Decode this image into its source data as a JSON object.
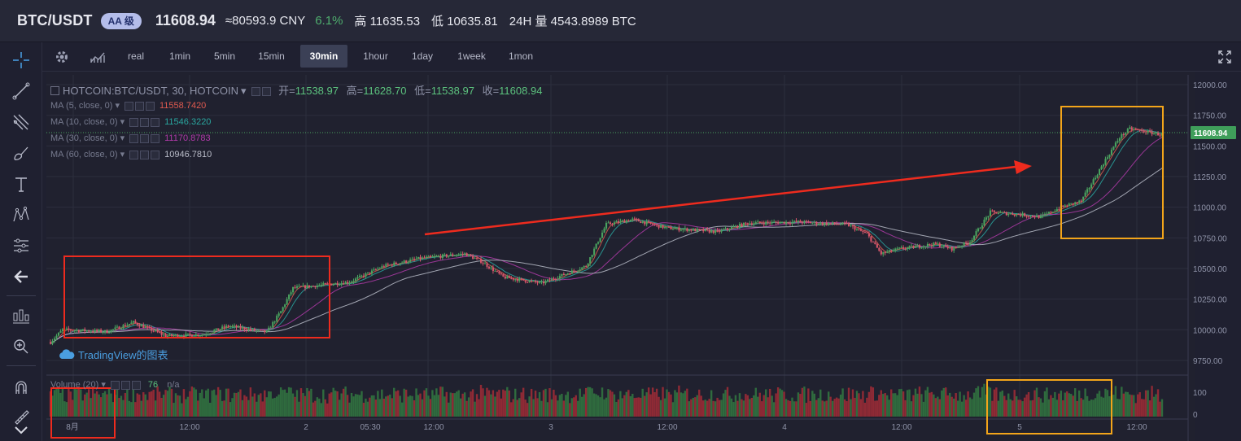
{
  "header": {
    "pair": "BTC/USDT",
    "grade": "AA 级",
    "price": "11608.94",
    "cny": "≈80593.9 CNY",
    "change": "6.1%",
    "high": "高 11635.53",
    "low": "低 10635.81",
    "volume24h": "24H 量 4543.8989 BTC"
  },
  "toolbar": {
    "timeframes": [
      "real",
      "1min",
      "5min",
      "15min",
      "30min",
      "1hour",
      "1day",
      "1week",
      "1mon"
    ],
    "active": "30min",
    "settings_icon": "gear-icon",
    "indicators_icon": "indicator-chart-icon",
    "fullscreen_icon": "fullscreen-icon"
  },
  "sidebar": {
    "tools": [
      "crosshair-icon",
      "trend-line-icon",
      "fib-icon",
      "brush-icon",
      "text-icon",
      "pattern-icon",
      "prediction-icon",
      "back-arrow-icon",
      "ruler-icon",
      "zoom-icon",
      "magnet-icon",
      "measure-icon"
    ]
  },
  "chart": {
    "symbol": "HOTCOIN:BTC/USDT, 30, HOTCOIN",
    "ohlc": {
      "open_label": "开=",
      "open": "11538.97",
      "high_label": "高=",
      "high": "11628.70",
      "low_label": "低=",
      "low": "11538.97",
      "close_label": "收=",
      "close": "11608.94"
    },
    "ma": [
      {
        "label": "MA (5, close, 0)",
        "value": "11558.7420",
        "color": "#e05a4f"
      },
      {
        "label": "MA (10, close, 0)",
        "value": "11546.3220",
        "color": "#2aa7a0"
      },
      {
        "label": "MA (30, close, 0)",
        "value": "11170.8783",
        "color": "#b03aa8"
      },
      {
        "label": "MA (60, close, 0)",
        "value": "10946.7810",
        "color": "#b9bcc8"
      }
    ],
    "volume_label": "Volume (20)",
    "volume_value": "76",
    "volume_ma": "n/a",
    "watermark": "TradingView的图表",
    "price_ticks": [
      "12000.00",
      "11750.00",
      "11500.00",
      "11250.00",
      "11000.00",
      "10750.00",
      "10500.00",
      "10250.00",
      "10000.00",
      "9750.00"
    ],
    "last_price_label": "11608.94",
    "volume_ticks": [
      "100",
      "0"
    ],
    "time_ticks": [
      "8月",
      "12:00",
      "2",
      "05:30",
      "12:00",
      "3",
      "12:00",
      "4",
      "12:00",
      "5",
      "12:00"
    ]
  },
  "chart_data": {
    "type": "candlestick",
    "y_scale": {
      "min": 9650,
      "max": 12080
    },
    "keypoints": [
      [
        0,
        9900
      ],
      [
        6,
        10000
      ],
      [
        28,
        9985
      ],
      [
        41,
        10060
      ],
      [
        57,
        9950
      ],
      [
        75,
        9960
      ],
      [
        88,
        10030
      ],
      [
        107,
        9980
      ],
      [
        114,
        10150
      ],
      [
        120,
        10340
      ],
      [
        148,
        10390
      ],
      [
        165,
        10520
      ],
      [
        182,
        10580
      ],
      [
        205,
        10620
      ],
      [
        213,
        10560
      ],
      [
        224,
        10430
      ],
      [
        243,
        10380
      ],
      [
        265,
        10520
      ],
      [
        275,
        10860
      ],
      [
        288,
        10900
      ],
      [
        305,
        10830
      ],
      [
        330,
        10800
      ],
      [
        345,
        10870
      ],
      [
        370,
        10880
      ],
      [
        380,
        10870
      ],
      [
        394,
        10860
      ],
      [
        404,
        10780
      ],
      [
        411,
        10620
      ],
      [
        420,
        10660
      ],
      [
        438,
        10700
      ],
      [
        446,
        10660
      ],
      [
        455,
        10720
      ],
      [
        465,
        10960
      ],
      [
        480,
        10940
      ],
      [
        490,
        10920
      ],
      [
        500,
        11000
      ],
      [
        510,
        11050
      ],
      [
        521,
        11360
      ],
      [
        529,
        11570
      ],
      [
        534,
        11640
      ],
      [
        550,
        11590
      ]
    ]
  },
  "annotations": {
    "arrow": "red-trend-arrow",
    "boxes": [
      "red-consolidation-box",
      "orange-breakout-box",
      "red-volume-box",
      "orange-volume-box"
    ]
  }
}
